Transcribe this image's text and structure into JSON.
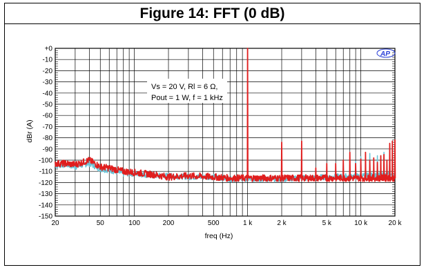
{
  "figure": {
    "title": "Figure 14: FFT (0 dB)"
  },
  "logo_text": "AP",
  "chart_data": {
    "type": "line",
    "title": "Figure 14: FFT (0 dB)",
    "xlabel": "freq (Hz)",
    "ylabel": "dBr (A)",
    "xscale": "log",
    "xlim": [
      20,
      20000
    ],
    "ylim": [
      -150,
      0
    ],
    "grid": true,
    "x_ticks": [
      20,
      50,
      100,
      200,
      500,
      1000,
      2000,
      5000,
      10000,
      20000
    ],
    "x_tick_labels": [
      "20",
      "50",
      "100",
      "200",
      "500",
      "1 k",
      "2 k",
      "5 k",
      "10 k",
      "20 k"
    ],
    "y_ticks": [
      0,
      -10,
      -20,
      -30,
      -40,
      -50,
      -60,
      -70,
      -80,
      -90,
      -100,
      -110,
      -120,
      -130,
      -140,
      -150
    ],
    "y_tick_labels": [
      "+0",
      "-10",
      "-20",
      "-30",
      "-40",
      "-50",
      "-60",
      "-70",
      "-80",
      "-90",
      "-100",
      "-110",
      "-120",
      "-130",
      "-140",
      "-150"
    ],
    "annotation": [
      "Vs = 20 V, Rl = 6 Ω,",
      "Pout = 1 W, f = 1 kHz"
    ],
    "colors": {
      "red": "#e01e1e",
      "cyan": "#6cc6d8"
    },
    "series": [
      {
        "color": "#e01e1e",
        "noise_floor": [
          [
            20,
            -103
          ],
          [
            25,
            -103
          ],
          [
            30,
            -104
          ],
          [
            40,
            -100
          ],
          [
            50,
            -106
          ],
          [
            60,
            -107
          ],
          [
            80,
            -110
          ],
          [
            100,
            -111
          ],
          [
            150,
            -113
          ],
          [
            200,
            -115
          ],
          [
            300,
            -114
          ],
          [
            500,
            -115
          ],
          [
            700,
            -116
          ],
          [
            1000,
            -116
          ],
          [
            2000,
            -116
          ],
          [
            5000,
            -116
          ],
          [
            10000,
            -116
          ],
          [
            20000,
            -116
          ]
        ],
        "harmonics": [
          [
            1000,
            0
          ],
          [
            2000,
            -84
          ],
          [
            3000,
            -83
          ],
          [
            4000,
            -107
          ],
          [
            5000,
            -103
          ],
          [
            6000,
            -103
          ],
          [
            7000,
            -100
          ],
          [
            8000,
            -93
          ],
          [
            9000,
            -103
          ],
          [
            10000,
            -99
          ],
          [
            11000,
            -93
          ],
          [
            12000,
            -100
          ],
          [
            13000,
            -98
          ],
          [
            14000,
            -102
          ],
          [
            15000,
            -96
          ],
          [
            16000,
            -95
          ],
          [
            17000,
            -100
          ],
          [
            18000,
            -85
          ],
          [
            19000,
            -83
          ],
          [
            20000,
            -82
          ]
        ]
      },
      {
        "color": "#6cc6d8",
        "noise_floor": [
          [
            20,
            -105
          ],
          [
            25,
            -104
          ],
          [
            30,
            -106
          ],
          [
            40,
            -103
          ],
          [
            50,
            -108
          ],
          [
            60,
            -109
          ],
          [
            80,
            -112
          ],
          [
            100,
            -112
          ],
          [
            150,
            -114
          ],
          [
            200,
            -114
          ],
          [
            300,
            -115
          ],
          [
            500,
            -115
          ],
          [
            700,
            -117
          ],
          [
            1000,
            -117
          ],
          [
            2000,
            -117
          ],
          [
            5000,
            -115
          ],
          [
            10000,
            -114
          ],
          [
            20000,
            -113
          ]
        ],
        "harmonics": [
          [
            7000,
            -103
          ],
          [
            9000,
            -101
          ],
          [
            10000,
            -97
          ],
          [
            12000,
            -94
          ],
          [
            14000,
            -96
          ],
          [
            16000,
            -93
          ],
          [
            18000,
            -91
          ]
        ]
      }
    ]
  }
}
